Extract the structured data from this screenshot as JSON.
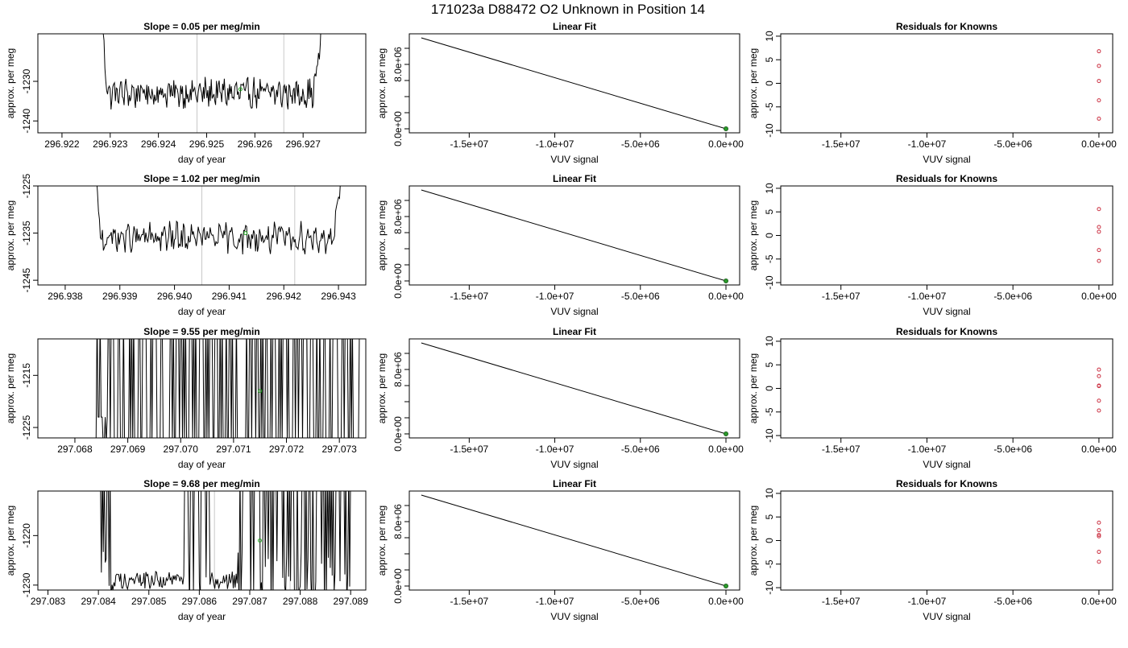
{
  "figure": {
    "title": "171023a      D88472    O2 Unknown in Position  14"
  },
  "chart_data": [
    {
      "type": "line",
      "panel": "time-series",
      "row": 0,
      "title": "Slope =  0.05  per meg/min",
      "xlabel": "day of year",
      "ylabel": "approx. per meg",
      "xlim": [
        296.9215,
        296.9283
      ],
      "ylim": [
        -1243,
        -1218
      ],
      "xticks": [
        "296.922",
        "296.923",
        "296.924",
        "296.925",
        "296.926",
        "296.927"
      ],
      "yticks": [
        "-1230",
        "-1240"
      ],
      "ytick_values": [
        -1230,
        -1240
      ],
      "xtick_values": [
        296.922,
        296.923,
        296.924,
        296.925,
        296.926,
        296.927
      ],
      "vlines": [
        296.9248,
        296.9266
      ],
      "signal": {
        "x_start": 296.9228,
        "x_end": 296.9275,
        "baseline": -1233,
        "amplitude": 3.0,
        "edge": "up"
      },
      "marker": {
        "x": 296.9257,
        "y": -1232,
        "color": "#22aa22"
      }
    },
    {
      "type": "line",
      "panel": "linear-fit",
      "row": 0,
      "title": "Linear Fit",
      "xlabel": "VUV signal",
      "ylabel": "approx. per meg",
      "xlim": [
        -18500000,
        800000
      ],
      "ylim": [
        -500000,
        11800000
      ],
      "xticks": [
        "-1.5e+07",
        "-1.0e+07",
        "-5.0e+06",
        "0.0e+00"
      ],
      "xtick_values": [
        -15000000,
        -10000000,
        -5000000,
        0
      ],
      "yticks": [
        "0.0e+00",
        "8.0e+06"
      ],
      "ytick_values": [
        0,
        8000000
      ],
      "y_minor_ticks": [
        2000000,
        4000000,
        6000000,
        10000000
      ],
      "line": {
        "x": [
          -17800000,
          0
        ],
        "y": [
          11300000,
          0
        ]
      },
      "points": [
        {
          "x": 0,
          "y": 0,
          "color": "#2a9a2a"
        }
      ]
    },
    {
      "type": "scatter",
      "panel": "residuals",
      "row": 0,
      "title": "Residuals for Knowns",
      "xlabel": "VUV signal",
      "ylabel": "approx. per meg",
      "xlim": [
        -18500000,
        800000
      ],
      "ylim": [
        -10.5,
        10.5
      ],
      "xticks": [
        "-1.5e+07",
        "-1.0e+07",
        "-5.0e+06",
        "0.0e+00"
      ],
      "xtick_values": [
        -15000000,
        -10000000,
        -5000000,
        0
      ],
      "yticks": [
        "-10",
        "-5",
        "0",
        "5",
        "10"
      ],
      "ytick_values": [
        -10,
        -5,
        0,
        5,
        10
      ],
      "x": [
        0,
        0,
        0,
        0,
        0
      ],
      "y": [
        6.8,
        3.7,
        0.5,
        -3.6,
        -7.5
      ],
      "color": "#cc3344"
    },
    {
      "type": "line",
      "panel": "time-series",
      "row": 1,
      "title": "Slope =  1.02  per meg/min",
      "xlabel": "day of year",
      "ylabel": "approx. per meg",
      "xlim": [
        296.9375,
        296.9435
      ],
      "ylim": [
        -1246,
        -1225
      ],
      "xticks": [
        "296.938",
        "296.939",
        "296.940",
        "296.941",
        "296.942",
        "296.943"
      ],
      "yticks": [
        "-1225",
        "-1235",
        "-1245"
      ],
      "ytick_values": [
        -1225,
        -1235,
        -1245
      ],
      "xtick_values": [
        296.938,
        296.939,
        296.94,
        296.941,
        296.942,
        296.943
      ],
      "vlines": [
        296.9405,
        296.9422
      ],
      "signal": {
        "x_start": 296.9385,
        "x_end": 296.9432,
        "baseline": -1236,
        "amplitude": 2.5,
        "edge": "up"
      },
      "marker": {
        "x": 296.9413,
        "y": -1235,
        "color": "#22aa22"
      }
    },
    {
      "type": "line",
      "panel": "linear-fit",
      "row": 1,
      "title": "Linear Fit",
      "xlabel": "VUV signal",
      "ylabel": "approx. per meg",
      "xlim": [
        -18500000,
        800000
      ],
      "ylim": [
        -500000,
        11800000
      ],
      "xticks": [
        "-1.5e+07",
        "-1.0e+07",
        "-5.0e+06",
        "0.0e+00"
      ],
      "xtick_values": [
        -15000000,
        -10000000,
        -5000000,
        0
      ],
      "yticks": [
        "0.0e+00",
        "8.0e+06"
      ],
      "ytick_values": [
        0,
        8000000
      ],
      "y_minor_ticks": [
        2000000,
        4000000,
        6000000,
        10000000
      ],
      "line": {
        "x": [
          -17800000,
          0
        ],
        "y": [
          11300000,
          0
        ]
      },
      "points": [
        {
          "x": 0,
          "y": 0,
          "color": "#2a9a2a"
        }
      ]
    },
    {
      "type": "scatter",
      "panel": "residuals",
      "row": 1,
      "title": "Residuals for Knowns",
      "xlabel": "VUV signal",
      "ylabel": "approx. per meg",
      "xlim": [
        -18500000,
        800000
      ],
      "ylim": [
        -10.5,
        10.5
      ],
      "xticks": [
        "-1.5e+07",
        "-1.0e+07",
        "-5.0e+06",
        "0.0e+00"
      ],
      "xtick_values": [
        -15000000,
        -10000000,
        -5000000,
        0
      ],
      "yticks": [
        "-10",
        "-5",
        "0",
        "5",
        "10"
      ],
      "ytick_values": [
        -10,
        -5,
        0,
        5,
        10
      ],
      "x": [
        0,
        0,
        0,
        0,
        0
      ],
      "y": [
        5.6,
        1.8,
        0.8,
        -3.1,
        -5.4
      ],
      "color": "#cc3344"
    },
    {
      "type": "line",
      "panel": "time-series",
      "row": 2,
      "title": "Slope =  9.55  per meg/min",
      "xlabel": "day of year",
      "ylabel": "approx. per meg",
      "xlim": [
        297.0673,
        297.0735
      ],
      "ylim": [
        -1227,
        -1208
      ],
      "xticks": [
        "297.068",
        "297.069",
        "297.070",
        "297.071",
        "297.072",
        "297.073"
      ],
      "yticks": [
        "-1215",
        "-1225"
      ],
      "ytick_values": [
        -1215,
        -1225
      ],
      "xtick_values": [
        297.068,
        297.069,
        297.07,
        297.071,
        297.072,
        297.073
      ],
      "vlines": [
        297.0707,
        297.0724
      ],
      "signal": {
        "x_start": 297.0684,
        "x_end": 297.0734,
        "baseline": -1227,
        "amplitude": 0,
        "edge": "spikes"
      },
      "marker": {
        "x": 297.0715,
        "y": -1218,
        "color": "#22aa22"
      }
    },
    {
      "type": "line",
      "panel": "linear-fit",
      "row": 2,
      "title": "Linear Fit",
      "xlabel": "VUV signal",
      "ylabel": "approx. per meg",
      "xlim": [
        -18500000,
        800000
      ],
      "ylim": [
        -500000,
        11800000
      ],
      "xticks": [
        "-1.5e+07",
        "-1.0e+07",
        "-5.0e+06",
        "0.0e+00"
      ],
      "xtick_values": [
        -15000000,
        -10000000,
        -5000000,
        0
      ],
      "yticks": [
        "0.0e+00",
        "8.0e+06"
      ],
      "ytick_values": [
        0,
        8000000
      ],
      "y_minor_ticks": [
        2000000,
        4000000,
        6000000,
        10000000
      ],
      "line": {
        "x": [
          -17800000,
          0
        ],
        "y": [
          11300000,
          0
        ]
      },
      "points": [
        {
          "x": 0,
          "y": 0,
          "color": "#2a9a2a"
        }
      ]
    },
    {
      "type": "scatter",
      "panel": "residuals",
      "row": 2,
      "title": "Residuals for Knowns",
      "xlabel": "VUV signal",
      "ylabel": "approx. per meg",
      "xlim": [
        -18500000,
        800000
      ],
      "ylim": [
        -10.5,
        10.5
      ],
      "xticks": [
        "-1.5e+07",
        "-1.0e+07",
        "-5.0e+06",
        "0.0e+00"
      ],
      "xtick_values": [
        -15000000,
        -10000000,
        -5000000,
        0
      ],
      "yticks": [
        "-10",
        "-5",
        "0",
        "5",
        "10"
      ],
      "ytick_values": [
        -10,
        -5,
        0,
        5,
        10
      ],
      "x": [
        0,
        0,
        0,
        0,
        0,
        0
      ],
      "y": [
        4.0,
        2.6,
        0.5,
        -2.6,
        -4.7,
        0.6
      ],
      "color": "#cc3344"
    },
    {
      "type": "line",
      "panel": "time-series",
      "row": 3,
      "title": "Slope =  9.68  per meg/min",
      "xlabel": "day of year",
      "ylabel": "approx. per meg",
      "xlim": [
        297.0828,
        297.0893
      ],
      "ylim": [
        -1231,
        -1211
      ],
      "xticks": [
        "297.083",
        "297.084",
        "297.085",
        "297.086",
        "297.087",
        "297.088",
        "297.089"
      ],
      "yticks": [
        "-1220",
        "-1230"
      ],
      "ytick_values": [
        -1220,
        -1230
      ],
      "xtick_values": [
        297.083,
        297.084,
        297.085,
        297.086,
        297.087,
        297.088,
        297.089
      ],
      "vlines": [
        297.0863,
        297.0878
      ],
      "signal": {
        "x_start": 297.084,
        "x_end": 297.089,
        "baseline": -1229,
        "amplitude": 1.2,
        "edge": "mixed"
      },
      "marker": {
        "x": 297.0872,
        "y": -1221,
        "color": "#22aa22"
      }
    },
    {
      "type": "line",
      "panel": "linear-fit",
      "row": 3,
      "title": "Linear Fit",
      "xlabel": "VUV signal",
      "ylabel": "approx. per meg",
      "xlim": [
        -18500000,
        800000
      ],
      "ylim": [
        -500000,
        11800000
      ],
      "xticks": [
        "-1.5e+07",
        "-1.0e+07",
        "-5.0e+06",
        "0.0e+00"
      ],
      "xtick_values": [
        -15000000,
        -10000000,
        -5000000,
        0
      ],
      "yticks": [
        "0.0e+00",
        "8.0e+06"
      ],
      "ytick_values": [
        0,
        8000000
      ],
      "y_minor_ticks": [
        2000000,
        4000000,
        6000000,
        10000000
      ],
      "line": {
        "x": [
          -17800000,
          0
        ],
        "y": [
          11300000,
          0
        ]
      },
      "points": [
        {
          "x": 0,
          "y": 0,
          "color": "#2a9a2a"
        }
      ]
    },
    {
      "type": "scatter",
      "panel": "residuals",
      "row": 3,
      "title": "Residuals for Knowns",
      "xlabel": "VUV signal",
      "ylabel": "approx. per meg",
      "xlim": [
        -18500000,
        800000
      ],
      "ylim": [
        -10.5,
        10.5
      ],
      "xticks": [
        "-1.5e+07",
        "-1.0e+07",
        "-5.0e+06",
        "0.0e+00"
      ],
      "xtick_values": [
        -15000000,
        -10000000,
        -5000000,
        0
      ],
      "yticks": [
        "-10",
        "-5",
        "0",
        "5",
        "10"
      ],
      "ytick_values": [
        -10,
        -5,
        0,
        5,
        10
      ],
      "x": [
        0,
        0,
        0,
        0,
        0,
        0
      ],
      "y": [
        3.8,
        2.2,
        0.9,
        -2.4,
        -4.5,
        1.2
      ],
      "color": "#cc3344"
    }
  ]
}
